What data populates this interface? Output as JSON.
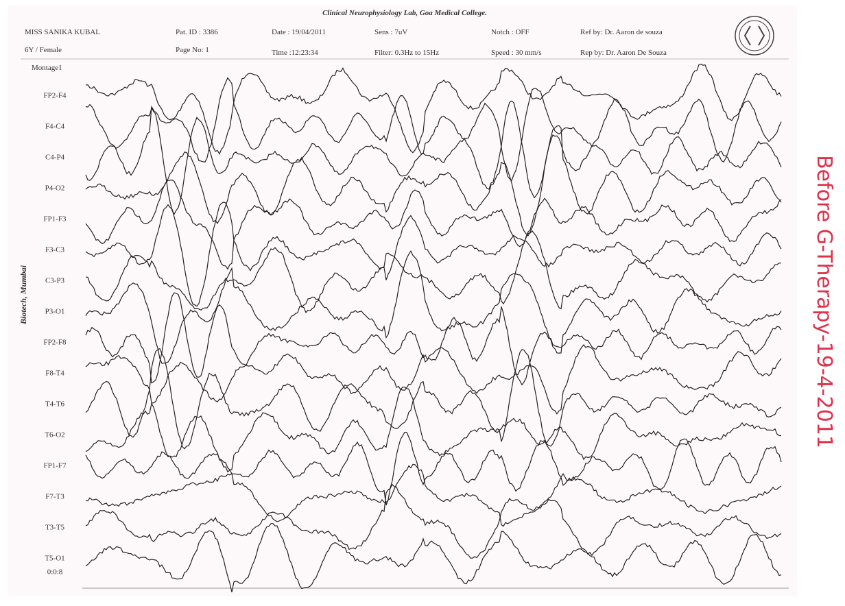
{
  "header": {
    "title": "Clinical Neurophysiology Lab, Goa Medical College.",
    "patient_name": "MISS SANIKA KUBAL",
    "age_sex": "6Y / Female",
    "patient_id": "Pat. ID : 3386",
    "page_no": "Page No: 1",
    "date": "Date : 19/04/2011",
    "time": "Time :12:23:34",
    "sens": "Sens : 7uV",
    "filter": "Filter: 0.3Hz to 15Hz",
    "notch": "Notch : OFF",
    "speed": "Speed : 30 mm/s",
    "ref_by": "Ref by: Dr. Aaron de souza",
    "rep_by": "Rep by: Dr. Aaron De Souza"
  },
  "montage": "Montage1",
  "channels": [
    "FP2-F4",
    "F4-C4",
    "C4-P4",
    "P4-O2",
    "FP1-F3",
    "F3-C3",
    "C3-P3",
    "P3-O1",
    "FP2-F8",
    "F8-T4",
    "T4-T6",
    "T6-O2",
    "FP1-F7",
    "F7-T3",
    "T3-T5",
    "T5-O1"
  ],
  "timestamp": "0:0:8",
  "side_text": "Biotech, Mumbai",
  "handwritten_note": "Before G-Therapy-19-4-2011"
}
